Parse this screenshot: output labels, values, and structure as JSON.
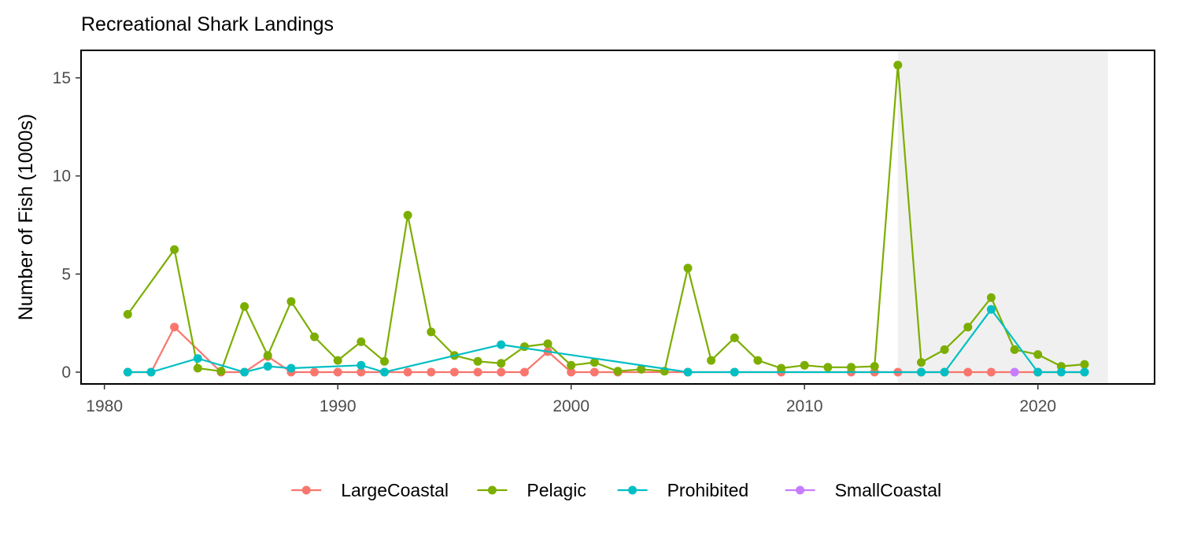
{
  "chart_data": {
    "type": "line",
    "title": "Recreational Shark Landings",
    "xlabel": "",
    "ylabel": "Number of Fish (1000s)",
    "xlim": [
      1979,
      2025
    ],
    "ylim": [
      -0.6,
      16.4
    ],
    "xticks": [
      1980,
      1990,
      2000,
      2010,
      2020
    ],
    "yticks": [
      0,
      5,
      10,
      15
    ],
    "grid": false,
    "legend_position": "bottom",
    "shaded_region": {
      "x_start": 2014,
      "x_end": 2023,
      "color": "#f0f0f0"
    },
    "series": [
      {
        "name": "LargeCoastal",
        "color": "#f8766d",
        "points": [
          [
            1981,
            0
          ],
          [
            1982,
            0
          ],
          [
            1983,
            2.3
          ],
          [
            1985,
            0
          ],
          [
            1986,
            0
          ],
          [
            1987,
            0.8
          ],
          [
            1988,
            0
          ],
          [
            1989,
            0
          ],
          [
            1990,
            0
          ],
          [
            1991,
            0
          ],
          [
            1992,
            0
          ],
          [
            1993,
            0
          ],
          [
            1994,
            0
          ],
          [
            1995,
            0
          ],
          [
            1996,
            0
          ],
          [
            1997,
            0
          ],
          [
            1998,
            0
          ],
          [
            1999,
            1.05
          ],
          [
            2000,
            0
          ],
          [
            2001,
            0
          ],
          [
            2002,
            0
          ],
          [
            2005,
            0
          ],
          [
            2007,
            0
          ],
          [
            2009,
            0
          ],
          [
            2012,
            0
          ],
          [
            2013,
            0
          ],
          [
            2014,
            0
          ],
          [
            2015,
            0
          ],
          [
            2016,
            0
          ],
          [
            2017,
            0
          ],
          [
            2018,
            0
          ],
          [
            2020,
            0
          ],
          [
            2022,
            0
          ]
        ]
      },
      {
        "name": "Pelagic",
        "color": "#7cae00",
        "points": [
          [
            1981,
            2.95
          ],
          [
            1983,
            6.25
          ],
          [
            1984,
            0.2
          ],
          [
            1985,
            0.05
          ],
          [
            1986,
            3.35
          ],
          [
            1987,
            0.85
          ],
          [
            1988,
            3.6
          ],
          [
            1989,
            1.8
          ],
          [
            1990,
            0.6
          ],
          [
            1991,
            1.55
          ],
          [
            1992,
            0.55
          ],
          [
            1993,
            8.0
          ],
          [
            1994,
            2.05
          ],
          [
            1995,
            0.85
          ],
          [
            1996,
            0.55
          ],
          [
            1997,
            0.45
          ],
          [
            1998,
            1.3
          ],
          [
            1999,
            1.45
          ],
          [
            2000,
            0.35
          ],
          [
            2001,
            0.5
          ],
          [
            2002,
            0.05
          ],
          [
            2003,
            0.15
          ],
          [
            2004,
            0.05
          ],
          [
            2005,
            5.3
          ],
          [
            2006,
            0.6
          ],
          [
            2007,
            1.75
          ],
          [
            2008,
            0.6
          ],
          [
            2009,
            0.2
          ],
          [
            2010,
            0.35
          ],
          [
            2011,
            0.25
          ],
          [
            2012,
            0.25
          ],
          [
            2013,
            0.3
          ],
          [
            2014,
            15.65
          ],
          [
            2015,
            0.5
          ],
          [
            2016,
            1.15
          ],
          [
            2017,
            2.3
          ],
          [
            2018,
            3.8
          ],
          [
            2019,
            1.15
          ],
          [
            2020,
            0.9
          ],
          [
            2021,
            0.3
          ],
          [
            2022,
            0.4
          ]
        ]
      },
      {
        "name": "Prohibited",
        "color": "#00bfc4",
        "points": [
          [
            1981,
            0
          ],
          [
            1982,
            0
          ],
          [
            1984,
            0.7
          ],
          [
            1986,
            0
          ],
          [
            1987,
            0.3
          ],
          [
            1988,
            0.2
          ],
          [
            1991,
            0.35
          ],
          [
            1992,
            0
          ],
          [
            1997,
            1.4
          ],
          [
            2005,
            0
          ],
          [
            2007,
            0
          ],
          [
            2015,
            0
          ],
          [
            2016,
            0
          ],
          [
            2018,
            3.2
          ],
          [
            2020,
            0
          ],
          [
            2021,
            0
          ],
          [
            2022,
            0
          ]
        ]
      },
      {
        "name": "SmallCoastal",
        "color": "#c77cff",
        "points": [
          [
            2019,
            0
          ]
        ]
      }
    ]
  }
}
